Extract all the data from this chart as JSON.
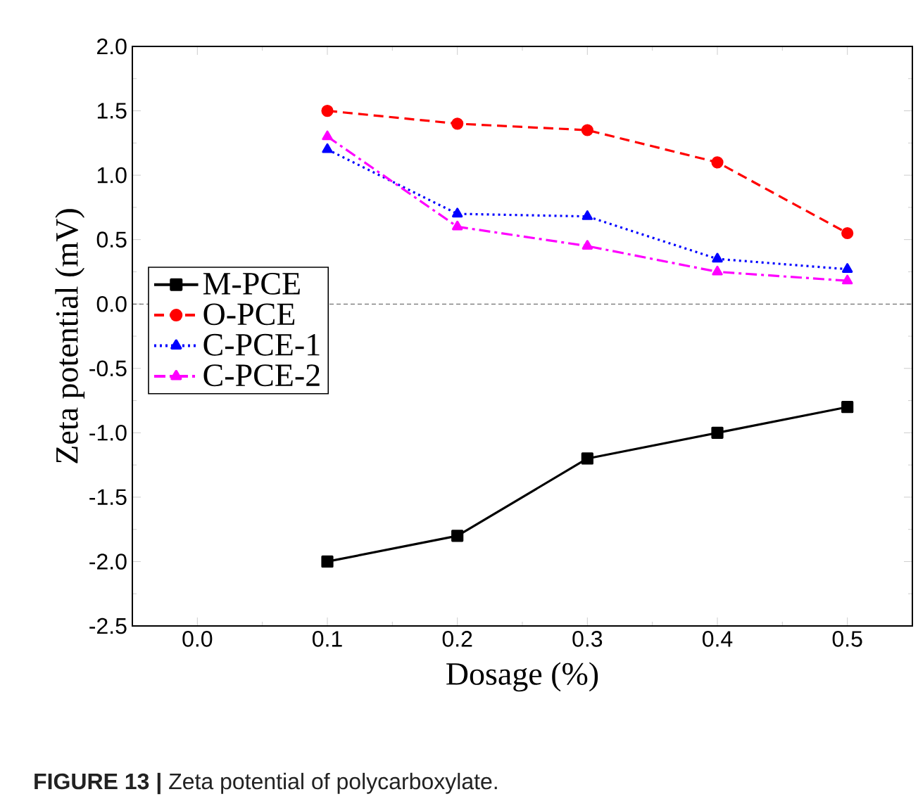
{
  "chart_data": {
    "type": "line",
    "xlabel": "Dosage (%)",
    "ylabel": "Zeta potential (mV)",
    "x": [
      0.1,
      0.2,
      0.3,
      0.4,
      0.5
    ],
    "series": [
      {
        "name": "M-PCE",
        "color": "#000000",
        "marker": "square",
        "line_style": "solid",
        "values": [
          -2.0,
          -1.8,
          -1.2,
          -1.0,
          -0.8
        ]
      },
      {
        "name": "O-PCE",
        "color": "#ff0000",
        "marker": "circle",
        "line_style": "dashed",
        "values": [
          1.5,
          1.4,
          1.35,
          1.1,
          0.55
        ]
      },
      {
        "name": "C-PCE-1",
        "color": "#0000ff",
        "marker": "triangle",
        "line_style": "dotted",
        "values": [
          1.2,
          0.7,
          0.68,
          0.35,
          0.27
        ]
      },
      {
        "name": "C-PCE-2",
        "color": "#ff00ff",
        "marker": "triangle down",
        "line_style": "dashdot",
        "values": [
          1.3,
          0.6,
          0.45,
          0.25,
          0.18
        ]
      }
    ],
    "xlim": [
      -0.05,
      0.55
    ],
    "ylim": [
      -2.5,
      2.0
    ],
    "xticks": [
      {
        "value": 0.0,
        "label": "0.0"
      },
      0.1,
      0.2,
      0.3,
      0.4,
      0.5
    ],
    "yticks": [
      -2.5,
      {
        "value": -2.0,
        "label": "-2.0"
      },
      -1.5,
      {
        "value": -1.0,
        "label": "-1.0"
      },
      -0.5,
      {
        "value": 0.0,
        "label": "0.0"
      },
      0.5,
      {
        "value": 1.0,
        "label": "1.0"
      },
      1.5,
      {
        "value": 2.0,
        "label": "2.0"
      }
    ],
    "ref_lines": [
      {
        "axis": "y",
        "value": 0,
        "line_style": "dashed",
        "color": "#000000"
      }
    ],
    "legend": "left",
    "grid": false,
    "annotations": [
      "**FIGURE 13 |** Zeta potential of polycarboxylate."
    ]
  }
}
